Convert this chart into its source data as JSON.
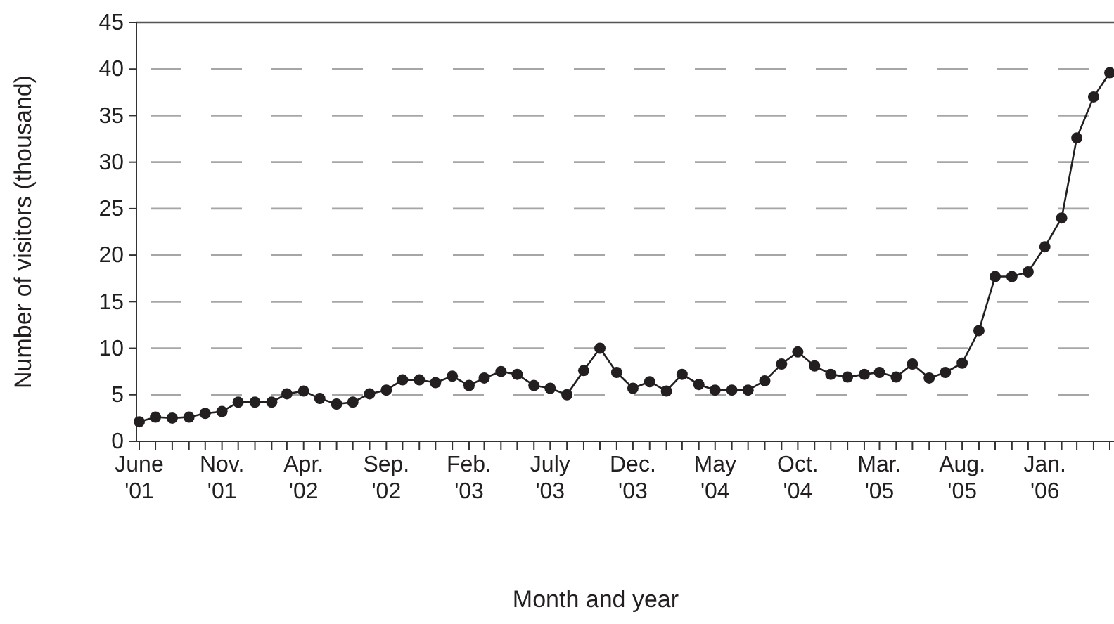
{
  "chart_data": {
    "type": "line",
    "xlabel": "Month and year",
    "ylabel": "Number of visitors (thousand)",
    "x": [
      "2001-06",
      "2001-07",
      "2001-08",
      "2001-09",
      "2001-10",
      "2001-11",
      "2001-12",
      "2002-01",
      "2002-02",
      "2002-03",
      "2002-04",
      "2002-05",
      "2002-06",
      "2002-07",
      "2002-08",
      "2002-09",
      "2002-10",
      "2002-11",
      "2002-12",
      "2003-01",
      "2003-02",
      "2003-03",
      "2003-04",
      "2003-05",
      "2003-06",
      "2003-07",
      "2003-08",
      "2003-09",
      "2003-10",
      "2003-11",
      "2003-12",
      "2004-01",
      "2004-02",
      "2004-03",
      "2004-04",
      "2004-05",
      "2004-06",
      "2004-07",
      "2004-08",
      "2004-09",
      "2004-10",
      "2004-11",
      "2004-12",
      "2005-01",
      "2005-02",
      "2005-03",
      "2005-04",
      "2005-05",
      "2005-06",
      "2005-07",
      "2005-08",
      "2005-09",
      "2005-10",
      "2005-11",
      "2005-12",
      "2006-01",
      "2006-02",
      "2006-03",
      "2006-04",
      "2006-05"
    ],
    "xlim": [
      "2001-06",
      "2006-05"
    ],
    "xticks": [
      {
        "value": "2001-06",
        "label": "June '01"
      },
      {
        "value": "2001-07",
        "label": null
      },
      {
        "value": "2001-08",
        "label": null
      },
      {
        "value": "2001-09",
        "label": null
      },
      {
        "value": "2001-10",
        "label": null
      },
      {
        "value": "2001-11",
        "label": "Nov. '01"
      },
      {
        "value": "2001-12",
        "label": null
      },
      {
        "value": "2002-01",
        "label": null
      },
      {
        "value": "2002-02",
        "label": null
      },
      {
        "value": "2002-03",
        "label": null
      },
      {
        "value": "2002-04",
        "label": "Apr. '02"
      },
      {
        "value": "2002-05",
        "label": null
      },
      {
        "value": "2002-06",
        "label": null
      },
      {
        "value": "2002-07",
        "label": null
      },
      {
        "value": "2002-08",
        "label": null
      },
      {
        "value": "2002-09",
        "label": "Sep. '02"
      },
      {
        "value": "2002-10",
        "label": null
      },
      {
        "value": "2002-11",
        "label": null
      },
      {
        "value": "2002-12",
        "label": null
      },
      {
        "value": "2003-01",
        "label": null
      },
      {
        "value": "2003-02",
        "label": "Feb. '03"
      },
      {
        "value": "2003-03",
        "label": null
      },
      {
        "value": "2003-04",
        "label": null
      },
      {
        "value": "2003-05",
        "label": null
      },
      {
        "value": "2003-06",
        "label": null
      },
      {
        "value": "2003-07",
        "label": "July '03"
      },
      {
        "value": "2003-08",
        "label": null
      },
      {
        "value": "2003-09",
        "label": null
      },
      {
        "value": "2003-10",
        "label": null
      },
      {
        "value": "2003-11",
        "label": null
      },
      {
        "value": "2003-12",
        "label": "Dec. '03"
      },
      {
        "value": "2004-01",
        "label": null
      },
      {
        "value": "2004-02",
        "label": null
      },
      {
        "value": "2004-03",
        "label": null
      },
      {
        "value": "2004-04",
        "label": null
      },
      {
        "value": "2004-05",
        "label": "May '04"
      },
      {
        "value": "2004-06",
        "label": null
      },
      {
        "value": "2004-07",
        "label": null
      },
      {
        "value": "2004-08",
        "label": null
      },
      {
        "value": "2004-09",
        "label": null
      },
      {
        "value": "2004-10",
        "label": "Oct. '04"
      },
      {
        "value": "2004-11",
        "label": null
      },
      {
        "value": "2004-12",
        "label": null
      },
      {
        "value": "2005-01",
        "label": null
      },
      {
        "value": "2005-02",
        "label": null
      },
      {
        "value": "2005-03",
        "label": "Mar. '05"
      },
      {
        "value": "2005-04",
        "label": null
      },
      {
        "value": "2005-05",
        "label": null
      },
      {
        "value": "2005-06",
        "label": null
      },
      {
        "value": "2005-07",
        "label": null
      },
      {
        "value": "2005-08",
        "label": "Aug. '05"
      },
      {
        "value": "2005-09",
        "label": null
      },
      {
        "value": "2005-10",
        "label": null
      },
      {
        "value": "2005-11",
        "label": null
      },
      {
        "value": "2005-12",
        "label": null
      },
      {
        "value": "2006-01",
        "label": "Jan. '06"
      },
      {
        "value": "2006-02",
        "label": null
      },
      {
        "value": "2006-03",
        "label": null
      },
      {
        "value": "2006-04",
        "label": null
      },
      {
        "value": "2006-05",
        "label": null
      }
    ],
    "series": [
      {
        "color": "#231f20",
        "values": [
          2.1,
          2.6,
          2.5,
          2.6,
          3.0,
          3.2,
          4.2,
          4.2,
          4.2,
          5.1,
          5.4,
          4.6,
          4.0,
          4.2,
          5.1,
          5.5,
          6.6,
          6.6,
          6.3,
          7.0,
          6.0,
          6.8,
          7.5,
          7.2,
          6.0,
          5.7,
          5.0,
          7.6,
          10.0,
          7.4,
          5.7,
          6.4,
          5.4,
          7.2,
          6.1,
          5.5,
          5.5,
          5.5,
          6.5,
          8.3,
          9.6,
          8.1,
          7.2,
          6.9,
          7.2,
          7.4,
          6.9,
          8.3,
          6.8,
          7.4,
          8.4,
          11.9,
          17.7,
          17.7,
          18.2,
          20.9,
          24.0,
          32.6,
          37.0,
          39.6
        ]
      }
    ],
    "ylim": [
      0,
      45
    ],
    "yticks": [
      0,
      5,
      10,
      15,
      20,
      25,
      30,
      35,
      40,
      45
    ],
    "grid": "y",
    "marker": "circle",
    "line_style": "solid"
  }
}
